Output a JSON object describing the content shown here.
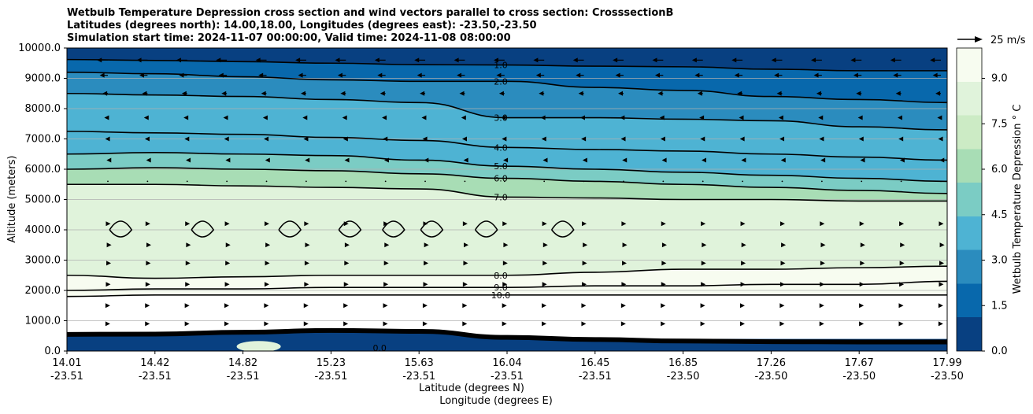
{
  "title_lines": [
    "Wetbulb Temperature Depression cross section and wind vectors parallel to cross section: CrosssectionB",
    "Latitudes (degrees north): 14.00,18.00, Longitudes (degrees east): -23.50,-23.50",
    "Simulation start time: 2024-11-07 00:00:00, Valid time: 2024-11-08 08:00:00"
  ],
  "chart_data": {
    "type": "heatmap",
    "subtype": "filled contour cross section with wind vectors",
    "xlabel_lines": [
      "Latitude (degrees N)",
      "Longitude (degrees E)"
    ],
    "ylabel": "Altitude (meters)",
    "ylim": [
      0,
      10000
    ],
    "y_ticks": [
      "0.0",
      "1000.0",
      "2000.0",
      "3000.0",
      "4000.0",
      "5000.0",
      "6000.0",
      "7000.0",
      "8000.0",
      "9000.0",
      "10000.0"
    ],
    "x_ticks": [
      {
        "lat": "14.01",
        "lon": "-23.51"
      },
      {
        "lat": "14.42",
        "lon": "-23.51"
      },
      {
        "lat": "14.82",
        "lon": "-23.51"
      },
      {
        "lat": "15.23",
        "lon": "-23.51"
      },
      {
        "lat": "15.63",
        "lon": "-23.51"
      },
      {
        "lat": "16.04",
        "lon": "-23.51"
      },
      {
        "lat": "16.45",
        "lon": "-23.51"
      },
      {
        "lat": "16.85",
        "lon": "-23.50"
      },
      {
        "lat": "17.26",
        "lon": "-23.50"
      },
      {
        "lat": "17.67",
        "lon": "-23.50"
      },
      {
        "lat": "17.99",
        "lon": "-23.50"
      }
    ],
    "grid": "horizontal",
    "colorbar": {
      "label": "Wetbulb Temperature Depression $^\\circ$C",
      "label_display": "Wetbulb Temperature Depression ° C",
      "min": 0,
      "max": 10,
      "ticks": [
        "0.0",
        "1.5",
        "3.0",
        "4.5",
        "6.0",
        "7.5",
        "9.0"
      ],
      "colormap": "GnBu_r",
      "colors": [
        "#084081",
        "#0868ac",
        "#2b8cbe",
        "#4eb3d3",
        "#7bccc4",
        "#a8ddb5",
        "#ccebc5",
        "#e0f3db",
        "#f7fcf0"
      ]
    },
    "contour_labels": [
      "1.0",
      "2.0",
      "3.0",
      "4.0",
      "5.0",
      "6.0",
      "7.0",
      "8.0",
      "9.0",
      "10.0",
      "0.0"
    ],
    "contour_levels": [
      {
        "level": 1.0,
        "altitudes_m": [
          9620,
          9590,
          9550,
          9500,
          9450,
          9440,
          9400,
          9380,
          9300,
          9250,
          9250
        ]
      },
      {
        "level": 2.0,
        "altitudes_m": [
          9200,
          9150,
          9050,
          8950,
          8900,
          8900,
          8700,
          8600,
          8400,
          8300,
          8200
        ]
      },
      {
        "level": 3.0,
        "altitudes_m": [
          8500,
          8450,
          8400,
          8300,
          8200,
          7700,
          7700,
          7650,
          7600,
          7400,
          7300
        ]
      },
      {
        "level": 4.0,
        "altitudes_m": [
          7250,
          7200,
          7150,
          7050,
          6950,
          6720,
          6650,
          6600,
          6500,
          6400,
          6300
        ]
      },
      {
        "level": 5.0,
        "altitudes_m": [
          6500,
          6550,
          6500,
          6450,
          6300,
          6100,
          6000,
          5900,
          5800,
          5700,
          5600
        ]
      },
      {
        "level": 6.0,
        "altitudes_m": [
          6000,
          6050,
          6000,
          5950,
          5850,
          5700,
          5600,
          5500,
          5400,
          5300,
          5200
        ]
      },
      {
        "level": 7.0,
        "altitudes_m": [
          5500,
          5500,
          5450,
          5400,
          5350,
          5080,
          5050,
          5000,
          5000,
          4950,
          4950
        ]
      },
      {
        "level": 8.0,
        "altitudes_m": [
          2500,
          2400,
          2450,
          2500,
          2500,
          2500,
          2600,
          2700,
          2700,
          2750,
          2800
        ]
      },
      {
        "level": 9.0,
        "altitudes_m": [
          2000,
          2050,
          2050,
          2100,
          2100,
          2100,
          2150,
          2150,
          2200,
          2200,
          2300
        ]
      },
      {
        "level": 10.0,
        "altitudes_m": [
          1800,
          1850,
          1850,
          1850,
          1850,
          1850,
          1850,
          1850,
          1850,
          1850,
          1850
        ]
      }
    ],
    "wind_reference": {
      "speed": 25,
      "unit": "m/s",
      "label": "25 m/s"
    },
    "wind_rows": [
      {
        "altitude_m": 9600,
        "u": -12
      },
      {
        "altitude_m": 9100,
        "u": -9
      },
      {
        "altitude_m": 8500,
        "u": -6
      },
      {
        "altitude_m": 7700,
        "u": -4
      },
      {
        "altitude_m": 7000,
        "u": -3
      },
      {
        "altitude_m": 6300,
        "u": -1.5
      },
      {
        "altitude_m": 5600,
        "u": -0.5
      },
      {
        "altitude_m": 4200,
        "u": 3
      },
      {
        "altitude_m": 3500,
        "u": 4
      },
      {
        "altitude_m": 2900,
        "u": 3.5
      },
      {
        "altitude_m": 2200,
        "u": 3
      },
      {
        "altitude_m": 1500,
        "u": 2.5
      },
      {
        "altitude_m": 900,
        "u": 2.5
      }
    ]
  }
}
